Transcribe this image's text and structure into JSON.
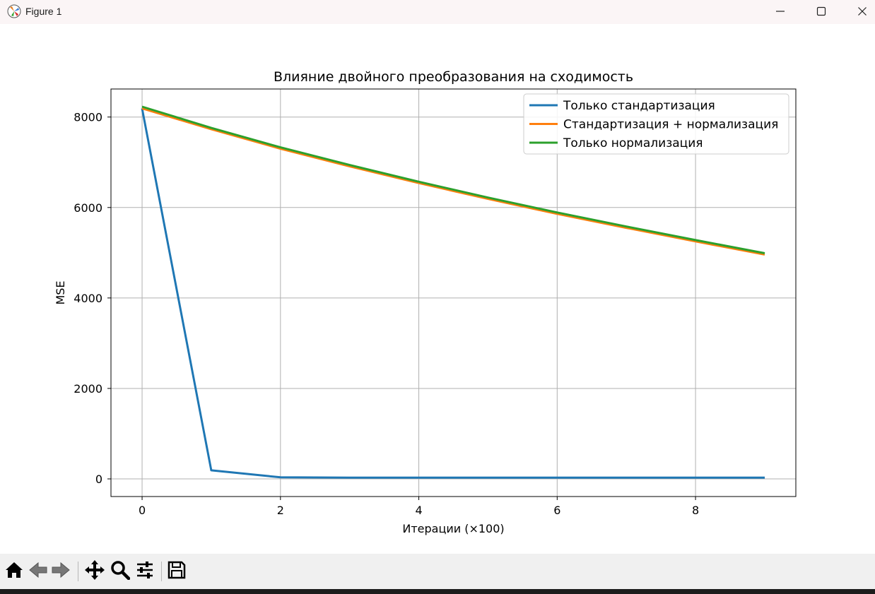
{
  "window": {
    "title": "Figure 1",
    "icons": {
      "app": "matplotlib-icon",
      "minimize": "minimize-icon",
      "maximize": "maximize-icon",
      "close": "close-icon"
    }
  },
  "toolbar": {
    "buttons": [
      {
        "name": "home-button",
        "icon": "home-icon"
      },
      {
        "name": "back-button",
        "icon": "arrow-left-icon"
      },
      {
        "name": "forward-button",
        "icon": "arrow-right-icon"
      },
      {
        "name": "pan-button",
        "icon": "move-icon"
      },
      {
        "name": "zoom-button",
        "icon": "magnifier-icon"
      },
      {
        "name": "configure-subplots-button",
        "icon": "sliders-icon"
      },
      {
        "name": "save-button",
        "icon": "floppy-disk-icon"
      }
    ]
  },
  "chart_data": {
    "type": "line",
    "title": "Влияние двойного преобразования на сходимость",
    "xlabel": "Итерации (×100)",
    "ylabel": "MSE",
    "xlim": [
      -0.45,
      9.45
    ],
    "ylim": [
      -390,
      8620
    ],
    "xticks": [
      0,
      2,
      4,
      6,
      8
    ],
    "yticks": [
      0,
      2000,
      4000,
      6000,
      8000
    ],
    "grid": true,
    "legend_position": "top-right",
    "x": [
      0,
      1,
      2,
      3,
      4,
      5,
      6,
      7,
      8,
      9
    ],
    "series": [
      {
        "name": "Только стандартизация",
        "color": "#1f77b4",
        "values": [
          8190,
          190,
          35,
          28,
          27,
          27,
          27,
          27,
          27,
          27
        ]
      },
      {
        "name": "Стандартизация + нормализация",
        "color": "#ff7f0e",
        "values": [
          8190,
          7730,
          7300,
          6910,
          6540,
          6190,
          5860,
          5550,
          5250,
          4960
        ]
      },
      {
        "name": "Только нормализация",
        "color": "#2ca02c",
        "values": [
          8230,
          7760,
          7330,
          6940,
          6570,
          6220,
          5890,
          5580,
          5280,
          4990
        ]
      }
    ]
  }
}
